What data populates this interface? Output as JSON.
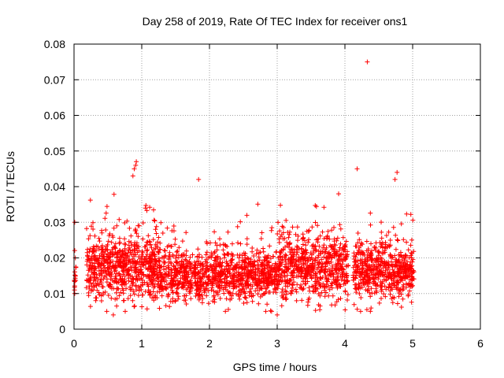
{
  "chart_data": {
    "type": "scatter",
    "title": "Day 258 of 2019, Rate Of TEC Index for receiver ons1",
    "xlabel": "GPS time / hours",
    "ylabel": "ROTI / TECUs",
    "xlim": [
      0,
      6
    ],
    "ylim": [
      0,
      0.08
    ],
    "xticks": [
      0,
      1,
      2,
      3,
      4,
      5,
      6
    ],
    "xtick_labels": [
      "0",
      "1",
      "2",
      "3",
      "4",
      "5",
      "6"
    ],
    "yticks": [
      0,
      0.01,
      0.02,
      0.03,
      0.04,
      0.05,
      0.06,
      0.07,
      0.08
    ],
    "ytick_labels": [
      "0",
      "0.01",
      "0.02",
      "0.03",
      "0.04",
      "0.05",
      "0.06",
      "0.07",
      "0.08"
    ],
    "grid": true,
    "marker": "+",
    "color": "#ff0000",
    "notable_points": [
      {
        "x": 4.33,
        "y": 0.075
      },
      {
        "x": 1.84,
        "y": 0.042
      },
      {
        "x": 0.92,
        "y": 0.047
      },
      {
        "x": 0.91,
        "y": 0.046
      },
      {
        "x": 0.89,
        "y": 0.045
      },
      {
        "x": 0.87,
        "y": 0.043
      },
      {
        "x": 4.18,
        "y": 0.045
      },
      {
        "x": 4.77,
        "y": 0.044
      },
      {
        "x": 4.74,
        "y": 0.042
      },
      {
        "x": 0.58,
        "y": 0.004
      },
      {
        "x": 3.0,
        "y": 0.004
      },
      {
        "x": 0.01,
        "y": 0.03
      },
      {
        "x": 0.02,
        "y": 0.02
      },
      {
        "x": 0.01,
        "y": 0.01
      }
    ],
    "segments": [
      {
        "x_start": 0.0,
        "x_end": 0.03,
        "mean": 0.015,
        "spread": 0.006,
        "count": 14
      },
      {
        "x_start": 0.18,
        "x_end": 1.27,
        "mean": 0.017,
        "spread": 0.008,
        "count": 700
      },
      {
        "x_start": 1.27,
        "x_end": 2.0,
        "mean": 0.015,
        "spread": 0.006,
        "count": 420
      },
      {
        "x_start": 2.0,
        "x_end": 3.0,
        "mean": 0.015,
        "spread": 0.006,
        "count": 600
      },
      {
        "x_start": 3.0,
        "x_end": 4.05,
        "mean": 0.017,
        "spread": 0.008,
        "count": 650
      },
      {
        "x_start": 4.12,
        "x_end": 5.02,
        "mean": 0.016,
        "spread": 0.007,
        "count": 560
      }
    ],
    "random_seed": 258
  }
}
